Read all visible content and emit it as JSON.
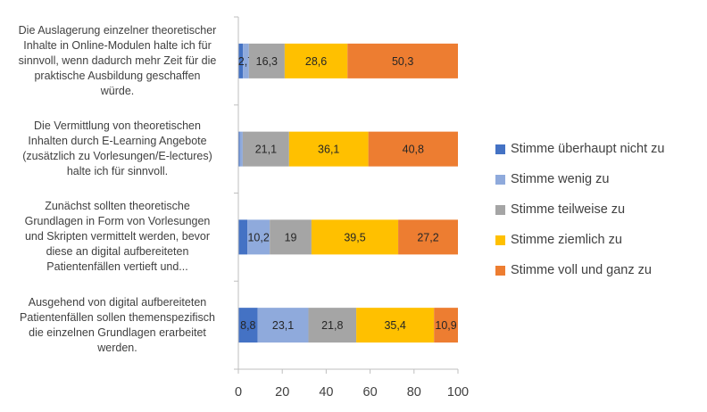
{
  "chart_data": {
    "type": "bar",
    "orientation": "horizontal",
    "stacked": true,
    "title": "",
    "xlabel": "",
    "ylabel": "",
    "xlim": [
      0,
      100
    ],
    "x_ticks": [
      "0",
      "20",
      "40",
      "60",
      "80",
      "100"
    ],
    "grid": false,
    "legend_position": "right",
    "categories": [
      "Die Auslagerung einzelner theoretischer Inhalte in Online-Modulen halte ich für sinnvoll, wenn dadurch mehr Zeit für die praktische Ausbildung geschaffen würde.",
      "Die Vermittlung von theoretischen Inhalten durch E-Learning Angebote (zusätzlich zu Vorlesungen/E-lectures) halte ich für sinnvoll.",
      "Zunächst sollten theoretische Grundlagen in Form von Vorlesungen und Skripten vermittelt werden, bevor diese an digital aufbereiteten Patientenfällen vertieft und...",
      "Ausgehend von digital aufbereiteten Patientenfällen sollen themenspezifisch die einzelnen Grundlagen erarbeitet werden."
    ],
    "category_lines": [
      [
        "Die Auslagerung einzelner theoretischer",
        "Inhalte in Online-Modulen halte ich für",
        "sinnvoll, wenn dadurch mehr Zeit für die",
        "praktische Ausbildung geschaffen",
        "würde."
      ],
      [
        "Die Vermittlung von theoretischen",
        "Inhalten durch E-Learning Angebote",
        "(zusätzlich zu Vorlesungen/E-lectures)",
        "halte ich für sinnvoll."
      ],
      [
        "Zunächst sollten theoretische",
        "Grundlagen in Form von Vorlesungen",
        "und Skripten vermittelt werden, bevor",
        "diese an digital aufbereiteten",
        "Patientenfällen vertieft und..."
      ],
      [
        "Ausgehend von digital aufbereiteten",
        "Patientenfällen sollen themenspezifisch",
        "die einzelnen Grundlagen erarbeitet",
        "werden."
      ]
    ],
    "series": [
      {
        "name": "Stimme überhaupt nicht zu",
        "color": "#4472C4",
        "values": [
          2.1,
          0.7,
          4.1,
          8.8
        ],
        "labels": [
          "",
          "",
          "",
          "8,8"
        ]
      },
      {
        "name": "Stimme wenig zu",
        "color": "#8FAADC",
        "values": [
          2.7,
          1.3,
          10.2,
          23.1
        ],
        "labels": [
          "2,7",
          "",
          "10,2",
          "23,1"
        ]
      },
      {
        "name": "Stimme teilweise zu",
        "color": "#A5A5A5",
        "values": [
          16.3,
          21.1,
          19,
          21.8
        ],
        "labels": [
          "16,3",
          "21,1",
          "19",
          "21,8"
        ]
      },
      {
        "name": "Stimme ziemlich zu",
        "color": "#FFC000",
        "values": [
          28.6,
          36.1,
          39.5,
          35.4
        ],
        "labels": [
          "28,6",
          "36,1",
          "39,5",
          "35,4"
        ]
      },
      {
        "name": "Stimme voll und ganz zu",
        "color": "#ED7D31",
        "values": [
          50.3,
          40.8,
          27.2,
          10.9
        ],
        "labels": [
          "50,3",
          "40,8",
          "27,2",
          "10,9"
        ]
      }
    ]
  }
}
